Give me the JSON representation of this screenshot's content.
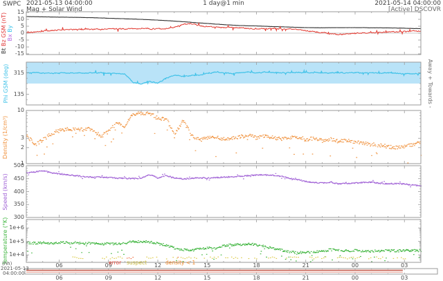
{
  "header": {
    "source": "SWPC",
    "start_datetime": "2021-05-13 04:00:00",
    "title": "Mag + Solar Wind",
    "resolution": "1 day@1 min",
    "end_datetime": "2021-05-14 04:00:00",
    "status": "[Active] DSCOVR"
  },
  "footer": {
    "axis_unit": "(hh)",
    "start_date": "2021-05-13",
    "start_time": "04:00:00",
    "hour_tick_labels": [
      "06",
      "09",
      "12",
      "15",
      "18",
      "21",
      "00",
      "03"
    ],
    "hour_tick_hours": [
      6,
      9,
      12,
      15,
      18,
      21,
      24,
      27
    ]
  },
  "flag_legend": {
    "error": "error",
    "suspect": "suspect",
    "density": "density < 1"
  },
  "colors": {
    "band": "#b9e3f8",
    "frame": "#9a9a9a",
    "zero_line": "#c9c9c9",
    "suspect": "#d9c73a",
    "error_flag": "#ef6a3a",
    "error_text": "#e8493c",
    "suspect_text": "#c8b838",
    "density_text": "#f08828",
    "range_bar_dark": "#bf4a3a",
    "range_bar_light": "#e6a296",
    "right_label": "#707070"
  },
  "chart_data": {
    "type": "line",
    "title": "Mag + Solar Wind",
    "x_start_hour": 4,
    "x_end_hour": 28,
    "x_axis_label": "(hh)",
    "x_hours": [
      4,
      4.5,
      5,
      5.5,
      6,
      6.5,
      7,
      7.5,
      8,
      8.5,
      9,
      9.5,
      10,
      10.5,
      11,
      11.5,
      12,
      12.5,
      13,
      13.5,
      14,
      14.5,
      15,
      15.5,
      16,
      16.5,
      17,
      17.5,
      18,
      18.5,
      19,
      19.5,
      20,
      20.5,
      21,
      21.5,
      22,
      22.5,
      23,
      23.5,
      24,
      24.5,
      25,
      25.5,
      26,
      26.5,
      27,
      27.5,
      28
    ],
    "panels": [
      {
        "name": "magnetic-field",
        "ylabel_parts": [
          {
            "text": "Bt ",
            "color": "#333333"
          },
          {
            "text": "Bz GSM (nT)",
            "color": "#e03535"
          }
        ],
        "ylabel2_parts": [
          {
            "text": "Bx ",
            "color": "#b46be0"
          },
          {
            "text": "By",
            "color": "#3bc3ea"
          }
        ],
        "yscale": "linear",
        "ylim": [
          -15.5,
          15.5
        ],
        "yticks": [
          15,
          10,
          5,
          0,
          -5,
          -10,
          -15
        ],
        "yticks_minor": [],
        "zero_line": true,
        "series": [
          {
            "name": "Bt",
            "color": "#2f2f2f",
            "mode": "line",
            "width": 1.1,
            "jitter": 0.06,
            "values": [
              12.0,
              11.9,
              11.8,
              11.7,
              11.6,
              11.5,
              11.4,
              11.3,
              11.2,
              11.0,
              10.8,
              10.6,
              10.4,
              10.2,
              10.0,
              9.7,
              9.4,
              9.1,
              8.7,
              8.3,
              7.9,
              7.4,
              7.0,
              6.6,
              6.2,
              5.8,
              5.5,
              5.3,
              5.2,
              5.0,
              4.8,
              4.6,
              4.4,
              4.2,
              4.0,
              3.9,
              3.9,
              4.0,
              4.0,
              4.0,
              4.0,
              4.0,
              3.9,
              3.9,
              3.8,
              3.7,
              3.6,
              3.4,
              3.3
            ]
          },
          {
            "name": "Bz",
            "color": "#e23b32",
            "mode": "line",
            "width": 1.0,
            "jitter": 0.45,
            "spike_prob": 0.05,
            "spike_mag": 2,
            "values": [
              0.4,
              0.8,
              1.4,
              1.8,
              2.2,
              2.5,
              2.6,
              2.7,
              2.8,
              2.7,
              2.9,
              3.0,
              3.1,
              3.3,
              3.5,
              3.2,
              3.0,
              3.3,
              4.0,
              6.2,
              7.0,
              5.5,
              4.6,
              4.3,
              4.0,
              4.1,
              3.8,
              3.6,
              3.2,
              3.0,
              3.2,
              3.3,
              2.8,
              2.4,
              1.8,
              1.2,
              0.4,
              -0.4,
              -1.1,
              -0.6,
              -0.2,
              0.1,
              0.3,
              0.5,
              0.7,
              0.8,
              1.0,
              1.3,
              1.6
            ]
          }
        ]
      },
      {
        "name": "phi-angle",
        "ylabel": "Phi GSM (deg)",
        "label_color": "#41c2e8",
        "right_label": "Away + Towards -",
        "yscale": "linear",
        "ylim": [
          45,
          405
        ],
        "yticks": [
          315,
          135
        ],
        "yticks_minor": [
          90,
          180,
          225,
          270,
          360
        ],
        "band": [
          225,
          405
        ],
        "series": [
          {
            "name": "Phi",
            "color": "#41c2e8",
            "mode": "line",
            "width": 1.2,
            "jitter": 4,
            "spike_prob": 0.05,
            "spike_mag": 22,
            "values": [
              314,
              316,
              313,
              310,
              314,
              312,
              315,
              313,
              316,
              314,
              312,
              310,
              305,
              235,
              220,
              245,
              228,
              270,
              295,
              285,
              292,
              295,
              310,
              320,
              315,
              310,
              318,
              322,
              316,
              320,
              318,
              315,
              316,
              318,
              315,
              317,
              316,
              314,
              317,
              315,
              316,
              314,
              315,
              313,
              315,
              312,
              308,
              305,
              308
            ]
          }
        ]
      },
      {
        "name": "density",
        "ylabel": "Density (1/cm³)",
        "label_color": "#f0913c",
        "yscale": "log",
        "ylim": [
          1,
          10
        ],
        "yticks": [
          10,
          3,
          2,
          1
        ],
        "yticks_minor": [
          4,
          5,
          6,
          7,
          8,
          9
        ],
        "series": [
          {
            "name": "Density",
            "color": "#f0913c",
            "mode": "scatter",
            "jitter": 0.035,
            "outlier_prob": 0.05,
            "outlier_mag": 0.25,
            "values": [
              3.4,
              2.2,
              2.8,
              3.6,
              4.2,
              4.5,
              4.5,
              4.4,
              4.5,
              3.2,
              4.0,
              5.8,
              5.0,
              8.5,
              9.0,
              8.8,
              7.0,
              6.8,
              3.2,
              6.3,
              3.5,
              2.8,
              3.0,
              3.2,
              2.9,
              3.0,
              3.2,
              3.4,
              3.0,
              3.3,
              3.1,
              2.9,
              3.0,
              3.2,
              2.8,
              3.0,
              2.7,
              2.9,
              2.6,
              2.8,
              2.5,
              2.4,
              2.3,
              2.2,
              2.1,
              2.0,
              2.1,
              2.3,
              2.6
            ]
          }
        ]
      },
      {
        "name": "speed",
        "ylabel": "Speed (km/s)",
        "label_color": "#9e5fd5",
        "yscale": "linear",
        "ylim": [
          300,
          500
        ],
        "yticks": [
          500,
          450,
          400,
          350,
          300
        ],
        "yticks_minor": [
          310,
          320,
          330,
          340,
          360,
          370,
          380,
          390,
          410,
          420,
          430,
          440,
          460,
          470,
          480,
          490
        ],
        "series": [
          {
            "name": "Speed",
            "color": "#a163d6",
            "mode": "scatter",
            "jitter": 2.2,
            "outlier_prob": 0.06,
            "outlier_mag": 9,
            "values": [
              473,
              476,
              481,
              472,
              468,
              465,
              461,
              458,
              456,
              456,
              454,
              452,
              451,
              450,
              452,
              466,
              452,
              462,
              452,
              449,
              451,
              453,
              452,
              454,
              456,
              457,
              459,
              461,
              464,
              465,
              463,
              459,
              452,
              446,
              439,
              435,
              433,
              436,
              430,
              432,
              433,
              435,
              436,
              432,
              429,
              431,
              429,
              425,
              423
            ]
          }
        ]
      },
      {
        "name": "temperature",
        "ylabel": "Temperature (°K)",
        "label_color": "#3cb43c",
        "yscale": "log",
        "ylim": [
          2800,
          4200000
        ],
        "yticks": [
          1000000,
          100000,
          10000
        ],
        "ytick_labels": [
          "1e+6",
          "1e+5",
          "1e+4"
        ],
        "yticks_minor": [
          4000,
          5000,
          6000,
          7000,
          8000,
          9000,
          20000,
          30000,
          40000,
          50000,
          60000,
          70000,
          80000,
          90000,
          200000,
          300000,
          400000,
          500000,
          600000,
          700000,
          800000,
          900000,
          2000000,
          3000000,
          4000000
        ],
        "series": [
          {
            "name": "Temperature",
            "color": "#3cb43c",
            "mode": "scatter",
            "jitter": 0.09,
            "outlier_prob": 0.07,
            "outlier_mag": 0.8,
            "values": [
              80000,
              75000,
              80000,
              70000,
              85000,
              78000,
              80000,
              72000,
              75000,
              60000,
              70000,
              65000,
              75000,
              95000,
              100000,
              90000,
              70000,
              50000,
              30000,
              25000,
              20000,
              28000,
              35000,
              30000,
              50000,
              55000,
              60000,
              62000,
              58000,
              40000,
              30000,
              22000,
              16000,
              15000,
              15000,
              16000,
              18000,
              25000,
              22000,
              20000,
              21000,
              20000,
              19000,
              20000,
              21000,
              20000,
              21000,
              21000,
              21000
            ]
          }
        ]
      }
    ],
    "flags": {
      "suspect_segments_hours": [
        [
          6.8,
          7.5
        ],
        [
          8.6,
          9.9
        ],
        [
          11.3,
          12.5
        ],
        [
          12.9,
          14.0
        ],
        [
          14.2,
          15.7
        ],
        [
          16.1,
          17.1
        ],
        [
          17.5,
          18.1
        ],
        [
          18.7,
          19.4
        ],
        [
          19.8,
          20.6
        ],
        [
          21.1,
          22.3
        ],
        [
          22.9,
          24.3
        ],
        [
          24.8,
          26.0
        ],
        [
          26.3,
          27.1
        ]
      ],
      "error_segments_hours": [
        [
          10.1,
          10.5
        ],
        [
          13.2,
          13.5
        ]
      ]
    },
    "range_bar": {
      "filled_until_hour": 26.9
    }
  }
}
